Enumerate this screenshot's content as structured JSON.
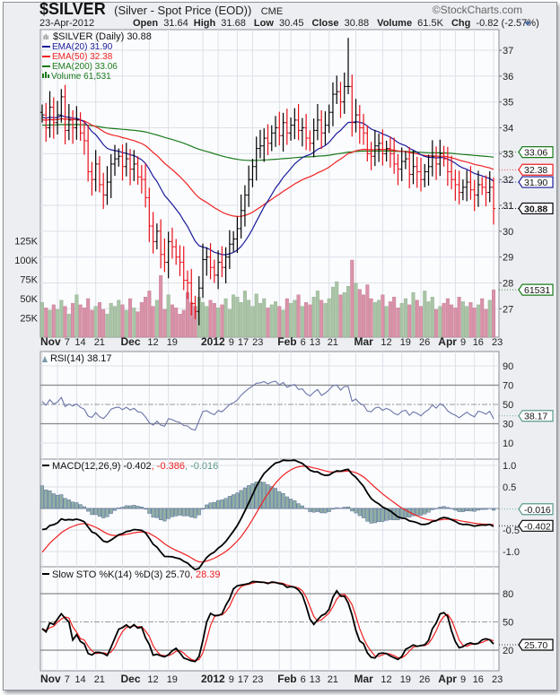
{
  "header": {
    "symbol": "$SILVER",
    "description": "(Silver - Spot Price (EOD))",
    "exchange": "CME",
    "copyright": "©StockCharts.com",
    "date": "23-Apr-2012",
    "open_label": "Open",
    "open": "31.64",
    "high_label": "High",
    "high": "31.68",
    "low_label": "Low",
    "low": "30.45",
    "close_label": "Close",
    "close": "30.88",
    "volume_label": "Volume",
    "volume": "61.5K",
    "chg_label": "Chg",
    "chg": "-0.82 (-2.57%)",
    "menu_icon": "triangle-down-icon"
  },
  "legend": {
    "price": "$SILVER (Daily) 30.88",
    "ema20": "EMA(20) 31.90",
    "ema50": "EMA(50) 32.38",
    "ema200": "EMA(200) 33.06",
    "volume": "Volume 61,531",
    "rsi": "RSI(14) 38.17",
    "macd_main": "MACD(12,26,9) -0.402",
    "macd_signal": ", -0.386",
    "macd_hist": ", -0.016",
    "sto_main": "Slow STO %K(14) %D(3) 25.70",
    "sto_d": ", 28.39"
  },
  "tags": {
    "ema200": "33.06",
    "ema50": "32.38",
    "ema20": "31.90",
    "close": "30.88",
    "volume": "61531",
    "rsi": "38.17",
    "macd_hist": "-0.016",
    "macd": "-0.402",
    "sto_k": "25.70"
  },
  "colors": {
    "up": "#000000",
    "down": "#e8101a",
    "ema20": "#1a1a9a",
    "ema50": "#f02020",
    "ema200": "#1a7a1a",
    "vol_up": "#a9c4a6",
    "vol_down": "#d992a8",
    "rsi": "#6a74a8",
    "macd": "#000000",
    "signal": "#f02020",
    "hist": "#8fb0a4",
    "sto_k": "#000000",
    "sto_d": "#f02020"
  },
  "chart_data": {
    "type": "line",
    "title": "$SILVER (Silver - Spot Price (EOD)) CME",
    "x_ticks": [
      {
        "i": 0,
        "label": "Nov",
        "major": true
      },
      {
        "i": 4,
        "label": "7"
      },
      {
        "i": 9,
        "label": "14"
      },
      {
        "i": 14,
        "label": "21"
      },
      {
        "i": 21,
        "label": "Dec",
        "major": true
      },
      {
        "i": 28,
        "label": "12"
      },
      {
        "i": 33,
        "label": "19"
      },
      {
        "i": 42,
        "label": "2012",
        "major": true
      },
      {
        "i": 46,
        "label": "9"
      },
      {
        "i": 51,
        "label": "17"
      },
      {
        "i": 55,
        "label": "23"
      },
      {
        "i": 62,
        "label": "Feb",
        "major": true
      },
      {
        "i": 65,
        "label": "6"
      },
      {
        "i": 70,
        "label": "13"
      },
      {
        "i": 75,
        "label": "21"
      },
      {
        "i": 82,
        "label": "Mar",
        "major": true
      },
      {
        "i": 89,
        "label": "12"
      },
      {
        "i": 94,
        "label": "19"
      },
      {
        "i": 99,
        "label": "26"
      },
      {
        "i": 104,
        "label": "Apr",
        "major": true
      },
      {
        "i": 108,
        "label": "9"
      },
      {
        "i": 113,
        "label": "16"
      },
      {
        "i": 118,
        "label": "23"
      }
    ],
    "price_axis": {
      "range": [
        25.9,
        37.8
      ],
      "ticks": [
        "27",
        "28",
        "29",
        "30",
        "31",
        "32",
        "33",
        "34",
        "35",
        "36",
        "37"
      ]
    },
    "volume_axis": {
      "range_k": [
        0,
        400
      ],
      "ticks": [
        {
          "v": 25,
          "label": "25K"
        },
        {
          "v": 50,
          "label": "50K"
        },
        {
          "v": 75,
          "label": "75K"
        },
        {
          "v": 100,
          "label": "100K"
        },
        {
          "v": 125,
          "label": "125K"
        }
      ]
    },
    "rsi_axis": {
      "range": [
        0,
        100
      ],
      "ticks": [
        "10",
        "30",
        "50",
        "70",
        "90"
      ]
    },
    "macd_axis": {
      "range": [
        -1.35,
        1.15
      ],
      "ticks": [
        {
          "v": 1.0,
          "label": "1.0"
        },
        {
          "v": 0.5,
          "label": "0.5"
        },
        {
          "v": -0.5,
          "label": "-0.5"
        },
        {
          "v": -1.0,
          "label": "-1.0"
        }
      ]
    },
    "sto_axis": {
      "range": [
        0,
        100
      ],
      "ticks": [
        "20",
        "50",
        "80"
      ]
    },
    "close": [
      34.5,
      34.0,
      34.8,
      34.2,
      34.5,
      35.2,
      33.9,
      34.3,
      34.0,
      34.3,
      33.8,
      33.5,
      32.3,
      32.0,
      32.6,
      31.8,
      31.4,
      31.9,
      32.6,
      32.8,
      32.9,
      32.5,
      32.8,
      32.4,
      32.6,
      32.1,
      32.0,
      31.3,
      30.2,
      29.6,
      30.0,
      29.1,
      28.8,
      29.6,
      29.4,
      29.0,
      28.8,
      28.1,
      28.0,
      27.2,
      26.9,
      27.8,
      28.9,
      29.0,
      28.6,
      28.3,
      28.8,
      28.6,
      29.0,
      29.5,
      29.7,
      30.1,
      30.8,
      31.4,
      32.0,
      32.5,
      33.2,
      33.3,
      33.6,
      33.4,
      33.8,
      34.0,
      33.7,
      34.2,
      33.8,
      34.1,
      34.3,
      33.9,
      34.0,
      33.6,
      33.4,
      33.9,
      34.3,
      33.8,
      34.1,
      34.6,
      35.3,
      35.4,
      35.0,
      35.6,
      35.6,
      34.2,
      34.5,
      34.0,
      33.8,
      33.0,
      32.9,
      33.3,
      33.4,
      33.0,
      33.2,
      33.0,
      32.6,
      32.4,
      32.7,
      32.8,
      32.2,
      32.5,
      32.3,
      32.0,
      32.3,
      32.5,
      32.9,
      32.6,
      33.0,
      32.8,
      32.3,
      32.0,
      31.8,
      31.5,
      31.7,
      31.9,
      31.6,
      31.4,
      31.8,
      31.7,
      31.5,
      31.7,
      30.88
    ],
    "spike": {
      "i": 80,
      "high": 37.48
    },
    "volume_k": [
      45,
      38,
      35,
      42,
      36,
      48,
      40,
      30,
      44,
      55,
      42,
      38,
      50,
      35,
      40,
      45,
      36,
      30,
      44,
      40,
      48,
      42,
      35,
      50,
      38,
      33,
      45,
      52,
      60,
      40,
      48,
      80,
      36,
      55,
      42,
      38,
      30,
      35,
      58,
      45,
      40,
      52,
      45,
      40,
      48,
      44,
      38,
      42,
      50,
      36,
      55,
      52,
      45,
      60,
      48,
      40,
      56,
      44,
      50,
      38,
      42,
      46,
      40,
      35,
      50,
      44,
      48,
      55,
      40,
      45,
      42,
      52,
      60,
      48,
      44,
      50,
      65,
      72,
      55,
      58,
      66,
      100,
      70,
      62,
      55,
      68,
      50,
      45,
      48,
      55,
      40,
      46,
      52,
      38,
      44,
      50,
      42,
      58,
      48,
      40,
      60,
      46,
      52,
      36,
      40,
      44,
      50,
      42,
      38,
      52,
      46,
      40,
      45,
      38,
      42,
      50,
      36,
      48,
      61.5
    ]
  }
}
